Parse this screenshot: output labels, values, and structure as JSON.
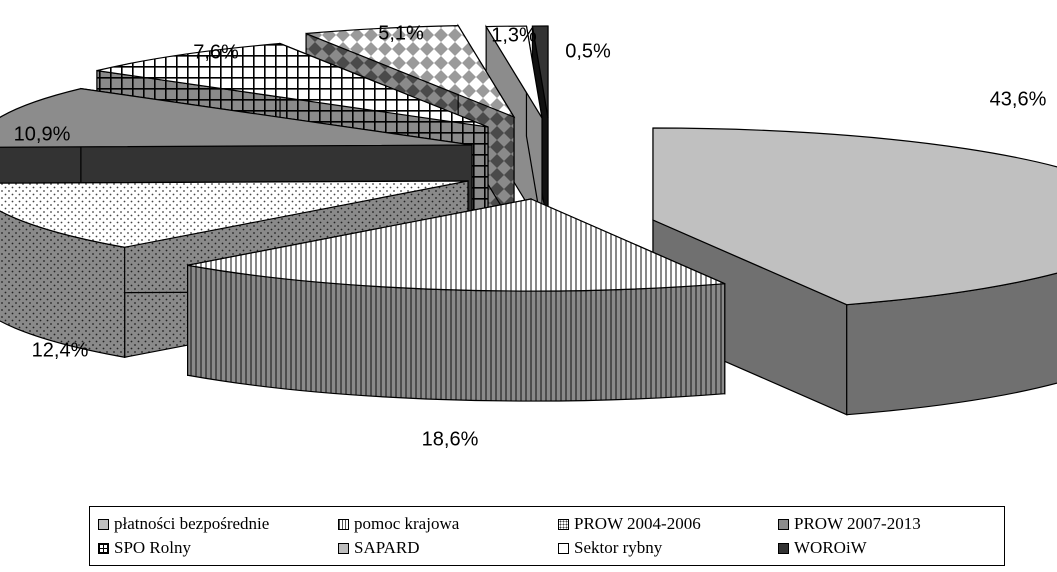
{
  "chart_data": {
    "type": "pie",
    "title": "",
    "style": "3d-exploded",
    "legend_position": "bottom",
    "series": [
      {
        "name": "płatności bezpośrednie",
        "value": 43.6,
        "label": "43,6%",
        "fill": "#c0c0c0",
        "pattern": "solid-light"
      },
      {
        "name": "pomoc krajowa",
        "value": 18.6,
        "label": "18,6%",
        "fill": "#ffffff",
        "pattern": "vertical-lines"
      },
      {
        "name": "PROW 2004-2006",
        "value": 12.4,
        "label": "12,4%",
        "fill": "#ffffff",
        "pattern": "dots"
      },
      {
        "name": "PROW 2007-2013",
        "value": 10.9,
        "label": "10,9%",
        "fill": "#8c8c8c",
        "pattern": "solid-mid"
      },
      {
        "name": "SPO Rolny",
        "value": 7.6,
        "label": "7,6%",
        "fill": "#ffffff",
        "pattern": "grid"
      },
      {
        "name": "SAPARD",
        "value": 5.1,
        "label": "5,1%",
        "fill": "#ffffff",
        "pattern": "diamonds"
      },
      {
        "name": "Sektor rybny",
        "value": 1.3,
        "label": "1,3%",
        "fill": "#ffffff",
        "pattern": "solid-white"
      },
      {
        "name": "WOROiW",
        "value": 0.5,
        "label": "0,5%",
        "fill": "#333333",
        "pattern": "solid-dark"
      }
    ]
  }
}
